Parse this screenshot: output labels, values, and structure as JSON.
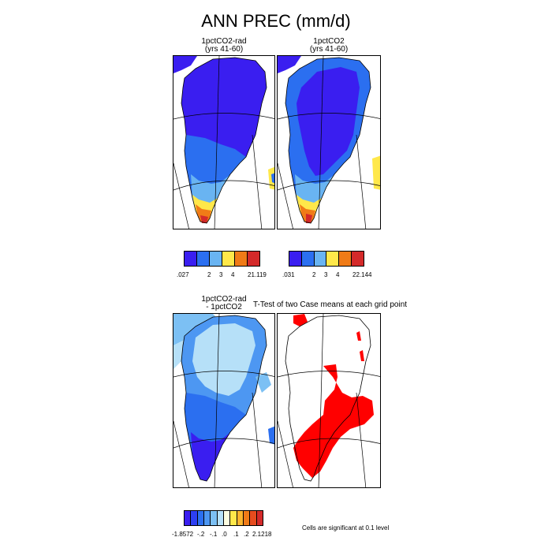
{
  "title": "ANN PREC (mm/d)",
  "panels": {
    "p1": {
      "title_line1": "1pctCO2-rad",
      "title_line2": "(yrs 41-60)"
    },
    "p2": {
      "title_line1": "1pctCO2",
      "title_line2": "(yrs 41-60)"
    },
    "p3": {
      "title_line1": "1pctCO2-rad",
      "title_line2": "- 1pctCO2"
    },
    "p4": {
      "title_line1": "T-Test of two Case means at each grid point"
    }
  },
  "colorbars": {
    "cb1": {
      "colors": [
        "#3a1ef0",
        "#2b6ff0",
        "#69b4f2",
        "#ffe84a",
        "#f07b17",
        "#d42a2a"
      ],
      "labels": [
        ".027",
        "2",
        "3",
        "4",
        "21.119"
      ]
    },
    "cb2": {
      "colors": [
        "#3a1ef0",
        "#2b6ff0",
        "#69b4f2",
        "#ffe84a",
        "#f07b17",
        "#d42a2a"
      ],
      "labels": [
        ".031",
        "2",
        "3",
        "4",
        "22.144"
      ]
    },
    "cb3": {
      "colors": [
        "#3a1ef0",
        "#2d3ff2",
        "#2b6ff0",
        "#4d97f2",
        "#7cc0f4",
        "#b6e0f8",
        "#fdfde0",
        "#ffe84a",
        "#fbb52e",
        "#f07b17",
        "#e64c1e",
        "#d42a2a"
      ],
      "labels": [
        "-1.8572",
        "-.2",
        "-.1",
        ".0",
        ".1",
        ".2",
        "2.1218"
      ]
    }
  },
  "significance_note": "Cells are significant at 0.1 level",
  "legend_colors": {
    "significant": "#ff0000"
  }
}
